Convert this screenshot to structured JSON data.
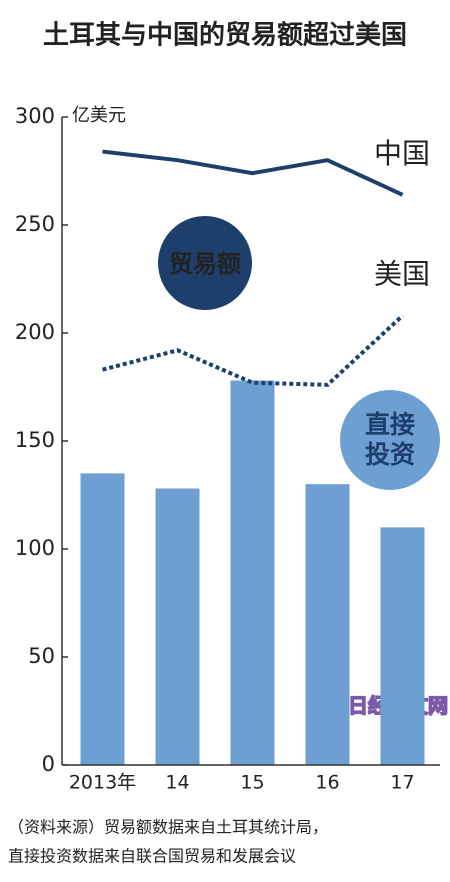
{
  "chart_data": {
    "type": "bar-line",
    "title": "土耳其与中国的贸易额超过美国",
    "y_unit": "亿美元",
    "categories": [
      "2013年",
      "14",
      "15",
      "16",
      "17"
    ],
    "series": [
      {
        "name": "直接投资",
        "type": "bar",
        "color": "#6d9fd2",
        "values": [
          135,
          128,
          178,
          130,
          110
        ]
      },
      {
        "name": "中国",
        "type": "line",
        "color": "#1e3f6c",
        "dashed": false,
        "values": [
          284,
          280,
          274,
          280,
          264
        ]
      },
      {
        "name": "美国",
        "type": "line",
        "color": "#1e3f6c",
        "dashed": true,
        "values": [
          183,
          192,
          177,
          176,
          208
        ]
      }
    ],
    "line_group_label": "贸易额",
    "ylim": [
      0,
      300
    ],
    "yticks": [
      0,
      50,
      100,
      150,
      200,
      250,
      300
    ],
    "source": [
      "（资料来源）贸易额数据来自土耳其统计局，",
      "直接投资数据来自联合国贸易和发展会议"
    ],
    "watermark": "日经中文网"
  }
}
